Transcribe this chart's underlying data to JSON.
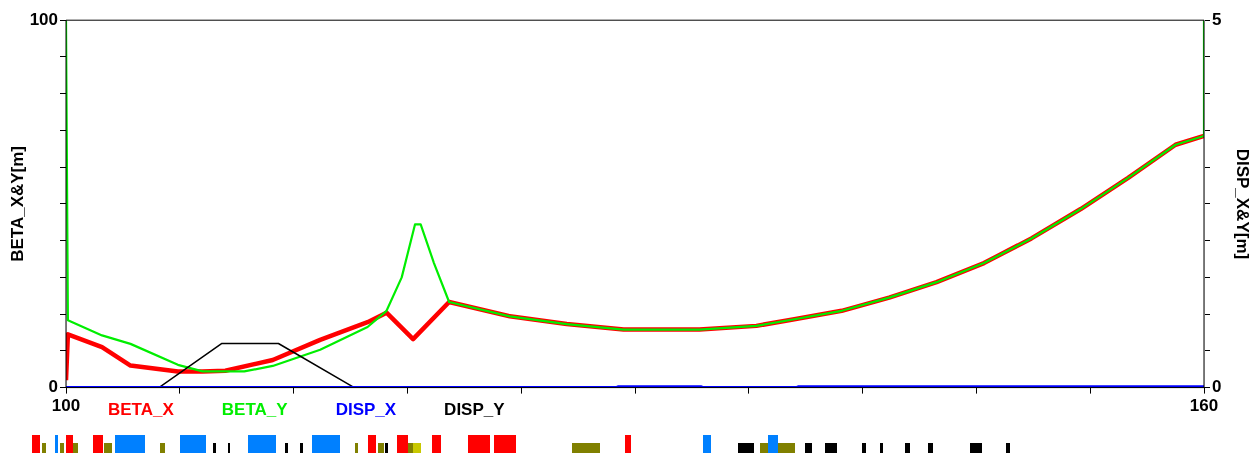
{
  "chart_data": {
    "type": "line",
    "xlabel": null,
    "ylabel": "BETA_X&Y[m]",
    "y2label": "DISP_X&Y[m]",
    "xlim": [
      100,
      160
    ],
    "xticks": [
      100,
      {
        "value": 106,
        "label": null
      },
      {
        "value": 112,
        "label": null
      },
      {
        "value": 118,
        "label": null
      },
      {
        "value": 124,
        "label": null
      },
      {
        "value": 130,
        "label": null
      },
      {
        "value": 136,
        "label": null
      },
      {
        "value": 142,
        "label": null
      },
      {
        "value": 148,
        "label": null
      },
      {
        "value": 154,
        "label": null
      },
      160
    ],
    "ylim": [
      0,
      100
    ],
    "yticks": [
      0,
      {
        "value": 10,
        "label": null
      },
      {
        "value": 20,
        "label": null
      },
      {
        "value": 30,
        "label": null
      },
      {
        "value": 40,
        "label": null
      },
      {
        "value": 50,
        "label": null
      },
      {
        "value": 60,
        "label": null
      },
      {
        "value": 70,
        "label": null
      },
      {
        "value": 80,
        "label": null
      },
      {
        "value": 90,
        "label": null
      },
      100
    ],
    "y2lim": [
      0,
      5
    ],
    "y2ticks": [
      0,
      {
        "value": 0.5,
        "label": null
      },
      {
        "value": 1,
        "label": null
      },
      {
        "value": 1.5,
        "label": null
      },
      {
        "value": 2,
        "label": null
      },
      {
        "value": 2.5,
        "label": null
      },
      {
        "value": 3,
        "label": null
      },
      {
        "value": 3.5,
        "label": null
      },
      {
        "value": 4,
        "label": null
      },
      {
        "value": 4.5,
        "label": null
      },
      5
    ],
    "grid": false,
    "legend": "bottom",
    "tick_labels": "xy",
    "series": [
      {
        "name": "BETA_X",
        "color": "#ff0000",
        "x": [
          100,
          100.1,
          101.9,
          103.4,
          105.9,
          107.2,
          108.4,
          110.9,
          113.4,
          115.9,
          116.9,
          118.3,
          120.2,
          123.4,
          126.4,
          129.4,
          133.4,
          136.4,
          138.4,
          140.9,
          143.4,
          145.9,
          148.4,
          150.9,
          153.5,
          156,
          158.5,
          160
        ],
        "values": [
          2,
          14.5,
          11,
          6,
          4.4,
          4.4,
          4.6,
          7.5,
          13,
          17.8,
          20.4,
          13.2,
          23.3,
          19.4,
          17.3,
          15.8,
          15.8,
          16.8,
          18.6,
          20.9,
          24.5,
          28.7,
          33.9,
          40.6,
          48.6,
          57.1,
          66.1,
          68.5
        ]
      },
      {
        "name": "BETA_Y",
        "color": "#00ee00",
        "x": [
          100,
          100.1,
          101.9,
          103.4,
          105.9,
          107.2,
          109.4,
          110.9,
          113.4,
          115.9,
          116.9,
          117.7,
          118.4,
          118.7,
          119.4,
          120.2,
          123.4,
          126.4,
          129.4,
          133.4,
          136.4,
          138.4,
          140.9,
          143.4,
          145.9,
          148.4,
          150.9,
          153.5,
          156,
          158.5,
          160,
          160
        ],
        "values": [
          100,
          18.3,
          14.2,
          11.9,
          6.2,
          4.4,
          4.4,
          5.9,
          10.3,
          16.5,
          20.9,
          30,
          44.4,
          44.4,
          33.9,
          23.3,
          19.4,
          17.3,
          15.8,
          15.8,
          16.8,
          18.6,
          20.9,
          24.5,
          28.7,
          33.9,
          40.6,
          48.6,
          57.1,
          66.1,
          68.5,
          100
        ]
      },
      {
        "name": "DISP_X",
        "color": "#0000ff",
        "axis": "y2",
        "x": [
          100,
          129,
          129.1,
          133.5,
          133.6,
          138.5,
          138.6,
          160
        ],
        "values": [
          0,
          0,
          0.01,
          0.01,
          0,
          0,
          0.01,
          0.01
        ]
      },
      {
        "name": "DISP_Y",
        "color": "#000000",
        "axis": "y2",
        "x": [
          100,
          104.9,
          108.2,
          111.2,
          115.2,
          160
        ],
        "values": [
          0,
          0,
          0.6,
          0.6,
          0,
          0
        ]
      }
    ]
  }
}
